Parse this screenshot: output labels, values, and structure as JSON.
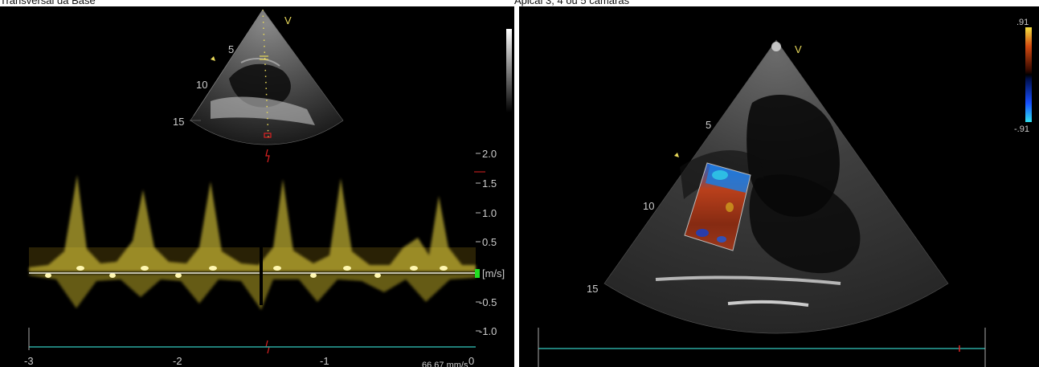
{
  "captions": {
    "left": "Transversal da Base",
    "right": "Apical 3, 4 ou 5 câmaras"
  },
  "left_view": {
    "orientation_marker": "V",
    "depth_labels": [
      "5",
      "10",
      "15"
    ],
    "velocity_ticks": [
      "2.0",
      "1.5",
      "1.0",
      "0.5",
      "-0.5",
      "-1.0"
    ],
    "velocity_unit": "[m/s]",
    "time_ticks": [
      "-3",
      "-2",
      "-1",
      "0"
    ],
    "sweep_speed": "66.67 mm/s"
  },
  "right_view": {
    "orientation_marker": "V",
    "depth_labels": [
      "5",
      "10",
      "15"
    ],
    "color_scale_max": ".91",
    "color_scale_min": "-.91"
  },
  "colors": {
    "background": "#000000",
    "doppler_trace": "#e6d23c",
    "baseline_cyan": "#2aa7a0",
    "label_yellow": "#e8d85a"
  }
}
